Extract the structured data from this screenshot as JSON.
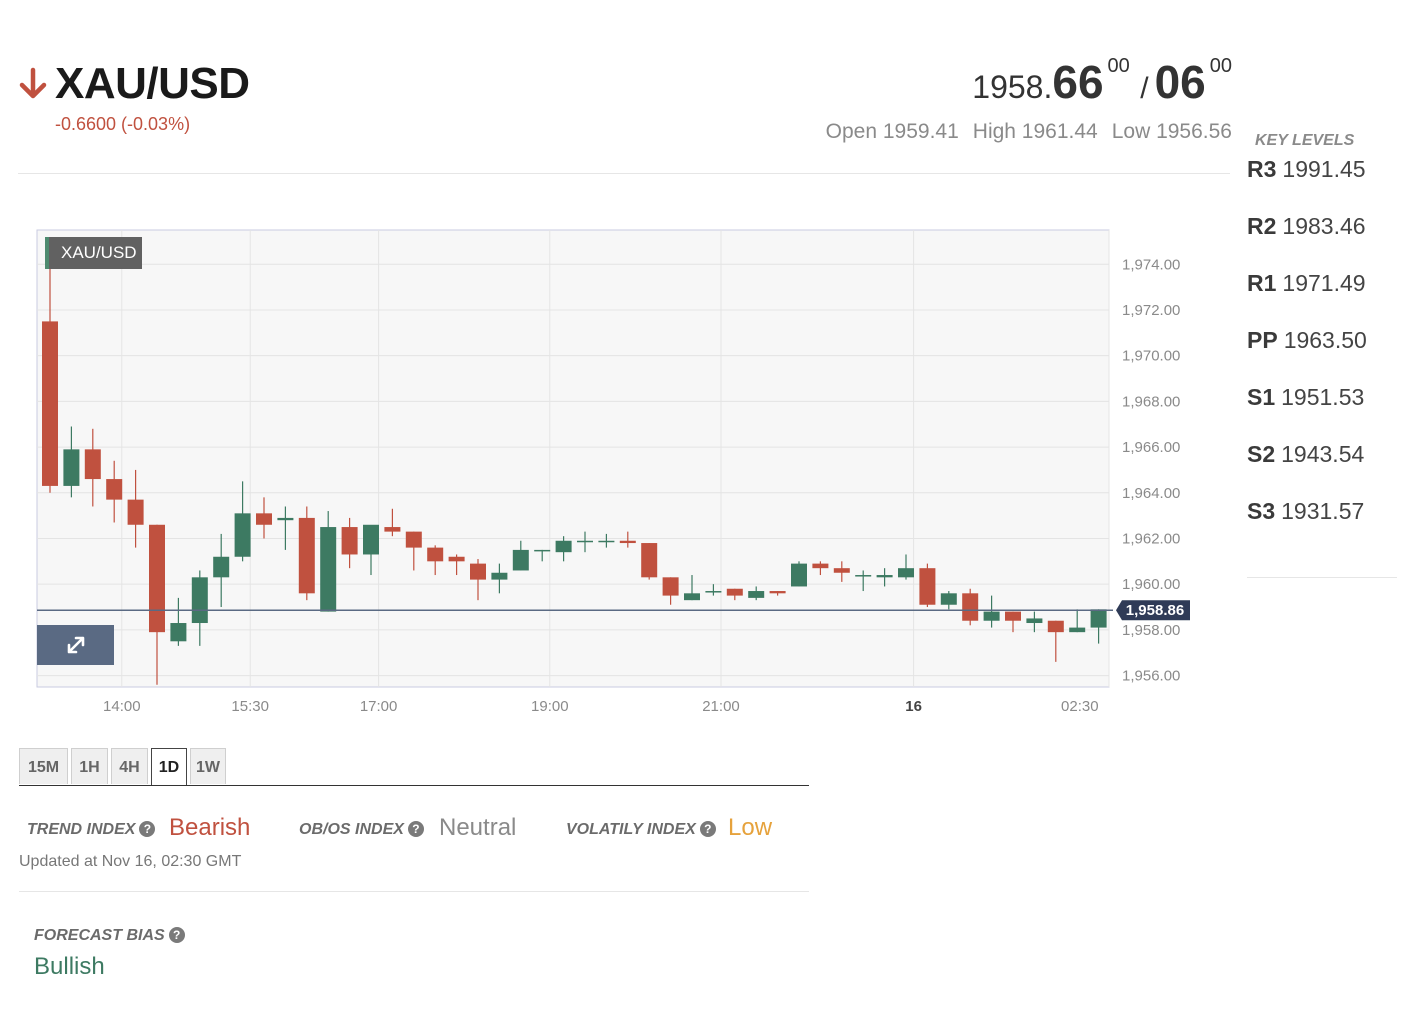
{
  "instrument": {
    "symbol": "XAU/USD",
    "direction": "down",
    "change": "-0.6600 (-0.03%)",
    "bid_base": "1958.",
    "bid_big": "66",
    "bid_sup": "00",
    "separator": "/",
    "ask_big": "06",
    "ask_sup": "00",
    "open": "Open 1959.41",
    "high": "High 1961.44",
    "low": "Low 1956.56",
    "colors": {
      "down": "#c0513f",
      "up": "#3d7a62"
    }
  },
  "key_levels": {
    "title": "KEY LEVELS",
    "items": [
      {
        "label": "R3",
        "value": "1991.45"
      },
      {
        "label": "R2",
        "value": "1983.46"
      },
      {
        "label": "R1",
        "value": "1971.49"
      },
      {
        "label": "PP",
        "value": "1963.50"
      },
      {
        "label": "S1",
        "value": "1951.53"
      },
      {
        "label": "S2",
        "value": "1943.54"
      },
      {
        "label": "S3",
        "value": "1931.57"
      }
    ]
  },
  "chart": {
    "tag": "XAU/USD",
    "expand_icon": "expand-arrows-icon"
  },
  "chart_data": {
    "type": "candlestick",
    "series_name": "XAU/USD",
    "y_ticks": [
      "1,974.00",
      "1,972.00",
      "1,970.00",
      "1,968.00",
      "1,966.00",
      "1,964.00",
      "1,962.00",
      "1,960.00",
      "1,958.00",
      "1,956.00"
    ],
    "ylim": [
      1955.5,
      1975.5
    ],
    "x_ticks": [
      {
        "label": "14:00",
        "bold": false,
        "index": 2
      },
      {
        "label": "15:30",
        "bold": false,
        "index": 8
      },
      {
        "label": "17:00",
        "bold": false,
        "index": 14
      },
      {
        "label": "19:00",
        "bold": false,
        "index": 22
      },
      {
        "label": "21:00",
        "bold": false,
        "index": 30
      },
      {
        "label": "16",
        "bold": true,
        "index": 39
      },
      {
        "label": "02:30",
        "bold": false,
        "index": 49
      }
    ],
    "last_price": 1958.86,
    "last_price_label": "1,958.86",
    "colors": {
      "up": "#3d7a62",
      "down": "#c0513f",
      "price_line": "#5a6a83"
    },
    "candles": [
      {
        "o": 1971.5,
        "h": 1974.6,
        "l": 1964.0,
        "c": 1964.3
      },
      {
        "o": 1964.3,
        "h": 1966.9,
        "l": 1963.8,
        "c": 1965.9
      },
      {
        "o": 1965.9,
        "h": 1966.8,
        "l": 1963.4,
        "c": 1964.6
      },
      {
        "o": 1964.6,
        "h": 1965.4,
        "l": 1962.7,
        "c": 1963.7
      },
      {
        "o": 1963.7,
        "h": 1965.0,
        "l": 1961.6,
        "c": 1962.6
      },
      {
        "o": 1962.6,
        "h": 1962.6,
        "l": 1955.6,
        "c": 1957.9
      },
      {
        "o": 1957.5,
        "h": 1959.4,
        "l": 1957.3,
        "c": 1958.3
      },
      {
        "o": 1958.3,
        "h": 1960.6,
        "l": 1957.3,
        "c": 1960.3
      },
      {
        "o": 1960.3,
        "h": 1962.2,
        "l": 1959.0,
        "c": 1961.2
      },
      {
        "o": 1961.2,
        "h": 1964.5,
        "l": 1961.0,
        "c": 1963.1
      },
      {
        "o": 1963.1,
        "h": 1963.8,
        "l": 1962.0,
        "c": 1962.6
      },
      {
        "o": 1962.8,
        "h": 1963.4,
        "l": 1961.5,
        "c": 1962.9
      },
      {
        "o": 1962.9,
        "h": 1963.4,
        "l": 1959.3,
        "c": 1959.6
      },
      {
        "o": 1958.8,
        "h": 1963.2,
        "l": 1958.8,
        "c": 1962.5
      },
      {
        "o": 1962.5,
        "h": 1962.9,
        "l": 1960.7,
        "c": 1961.3
      },
      {
        "o": 1961.3,
        "h": 1962.5,
        "l": 1960.4,
        "c": 1962.6
      },
      {
        "o": 1962.5,
        "h": 1963.3,
        "l": 1962.1,
        "c": 1962.3
      },
      {
        "o": 1962.3,
        "h": 1962.3,
        "l": 1960.6,
        "c": 1961.6
      },
      {
        "o": 1961.6,
        "h": 1961.7,
        "l": 1960.4,
        "c": 1961.0
      },
      {
        "o": 1961.2,
        "h": 1961.3,
        "l": 1960.4,
        "c": 1961.0
      },
      {
        "o": 1960.9,
        "h": 1961.1,
        "l": 1959.3,
        "c": 1960.2
      },
      {
        "o": 1960.2,
        "h": 1960.9,
        "l": 1959.6,
        "c": 1960.5
      },
      {
        "o": 1960.6,
        "h": 1961.9,
        "l": 1960.6,
        "c": 1961.5
      },
      {
        "o": 1961.5,
        "h": 1961.5,
        "l": 1961.0,
        "c": 1961.5
      },
      {
        "o": 1961.4,
        "h": 1962.1,
        "l": 1961.0,
        "c": 1961.9
      },
      {
        "o": 1961.9,
        "h": 1962.3,
        "l": 1961.4,
        "c": 1961.9
      },
      {
        "o": 1961.9,
        "h": 1962.2,
        "l": 1961.6,
        "c": 1961.9
      },
      {
        "o": 1961.9,
        "h": 1962.3,
        "l": 1961.6,
        "c": 1961.8
      },
      {
        "o": 1961.8,
        "h": 1961.8,
        "l": 1960.2,
        "c": 1960.3
      },
      {
        "o": 1960.3,
        "h": 1960.3,
        "l": 1959.1,
        "c": 1959.5
      },
      {
        "o": 1959.3,
        "h": 1960.4,
        "l": 1959.3,
        "c": 1959.6
      },
      {
        "o": 1959.7,
        "h": 1960.0,
        "l": 1959.5,
        "c": 1959.7
      },
      {
        "o": 1959.8,
        "h": 1959.8,
        "l": 1959.3,
        "c": 1959.5
      },
      {
        "o": 1959.4,
        "h": 1959.9,
        "l": 1959.3,
        "c": 1959.7
      },
      {
        "o": 1959.7,
        "h": 1959.7,
        "l": 1959.5,
        "c": 1959.6
      },
      {
        "o": 1959.9,
        "h": 1961.0,
        "l": 1959.9,
        "c": 1960.9
      },
      {
        "o": 1960.9,
        "h": 1961.0,
        "l": 1960.4,
        "c": 1960.7
      },
      {
        "o": 1960.7,
        "h": 1961.0,
        "l": 1960.1,
        "c": 1960.5
      },
      {
        "o": 1960.4,
        "h": 1960.6,
        "l": 1959.7,
        "c": 1960.4
      },
      {
        "o": 1960.3,
        "h": 1960.7,
        "l": 1959.9,
        "c": 1960.4
      },
      {
        "o": 1960.3,
        "h": 1961.3,
        "l": 1960.2,
        "c": 1960.7
      },
      {
        "o": 1960.7,
        "h": 1960.9,
        "l": 1959.0,
        "c": 1959.1
      },
      {
        "o": 1959.1,
        "h": 1959.7,
        "l": 1958.9,
        "c": 1959.6
      },
      {
        "o": 1959.6,
        "h": 1959.8,
        "l": 1958.2,
        "c": 1958.4
      },
      {
        "o": 1958.4,
        "h": 1959.5,
        "l": 1958.1,
        "c": 1958.8
      },
      {
        "o": 1958.8,
        "h": 1958.8,
        "l": 1957.9,
        "c": 1958.4
      },
      {
        "o": 1958.3,
        "h": 1958.8,
        "l": 1957.9,
        "c": 1958.5
      },
      {
        "o": 1958.4,
        "h": 1958.4,
        "l": 1956.6,
        "c": 1957.9
      },
      {
        "o": 1957.9,
        "h": 1958.9,
        "l": 1957.9,
        "c": 1958.1
      },
      {
        "o": 1958.1,
        "h": 1958.9,
        "l": 1957.4,
        "c": 1958.9
      }
    ]
  },
  "timeframes": {
    "items": [
      "15M",
      "1H",
      "4H",
      "1D",
      "1W"
    ],
    "active": "1D"
  },
  "indices": {
    "trend_label": "TREND INDEX",
    "trend_value": "Bearish",
    "obos_label": "OB/OS INDEX",
    "obos_value": "Neutral",
    "volatility_label": "VOLATILY INDEX",
    "volatility_value": "Low",
    "help_glyph": "?",
    "updated": "Updated at Nov 16, 02:30 GMT",
    "colors": {
      "bearish": "#c0513f",
      "neutral": "#8a8a8a",
      "low": "#e6a23c"
    }
  },
  "forecast": {
    "label": "FORECAST BIAS",
    "value": "Bullish"
  }
}
